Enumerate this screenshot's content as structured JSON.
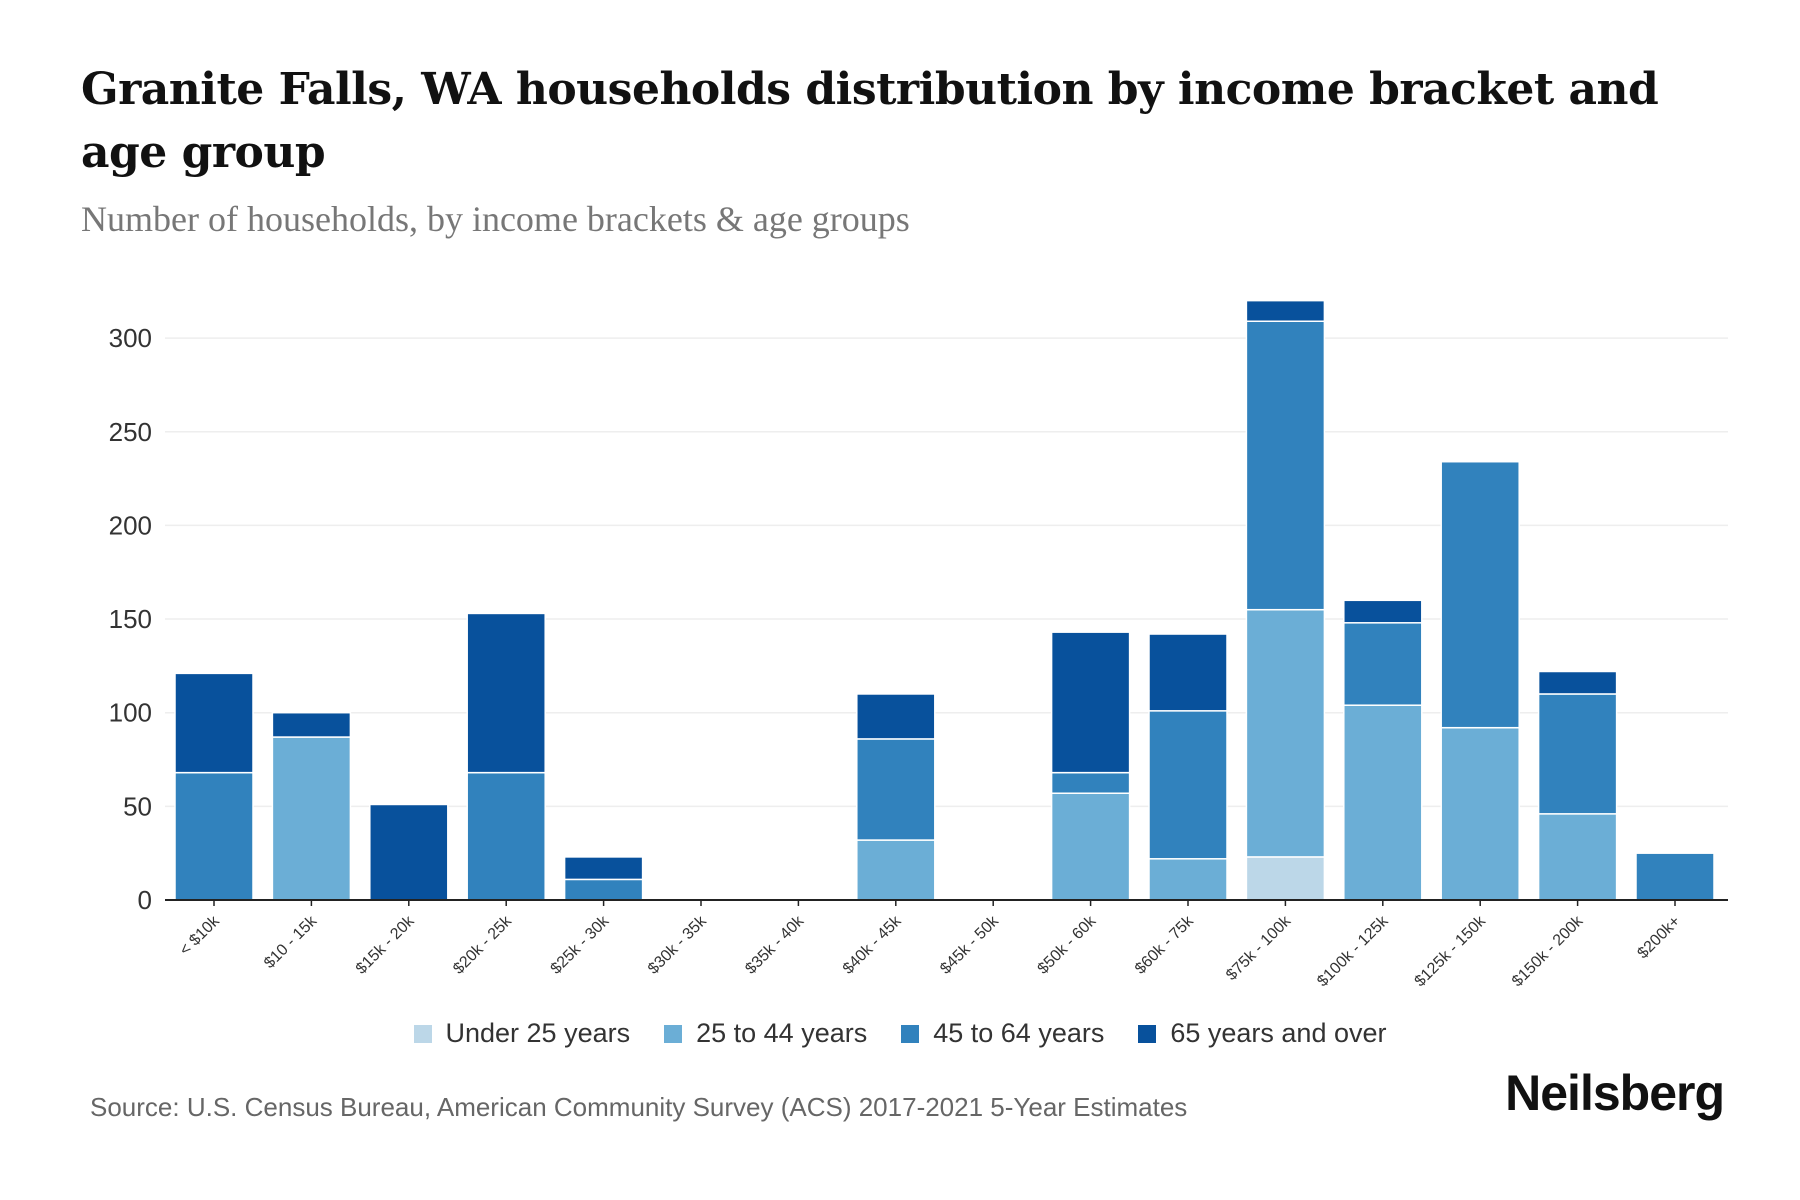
{
  "title": "Granite Falls, WA households distribution by income bracket and age group",
  "subtitle": "Number of households, by income brackets & age groups",
  "source": "Source: U.S. Census Bureau, American Community Survey (ACS) 2017-2021 5-Year Estimates",
  "logo": "Neilsberg",
  "colors": {
    "under25": "#bcd7e8",
    "a25_44": "#6baed6",
    "a45_64": "#3182bd",
    "a65plus": "#08519c",
    "grid": "#eeeeee",
    "axis": "#222222"
  },
  "chart_data": {
    "type": "bar",
    "stacked": true,
    "title": "Granite Falls, WA households distribution by income bracket and age group",
    "subtitle": "Number of households, by income brackets & age groups",
    "xlabel": "",
    "ylabel": "",
    "ylim": [
      0,
      320
    ],
    "yticks": [
      0,
      50,
      100,
      150,
      200,
      250,
      300
    ],
    "grid": true,
    "legend_position": "bottom",
    "categories": [
      "< $10k",
      "$10 - 15k",
      "$15k - 20k",
      "$20k - 25k",
      "$25k - 30k",
      "$30k - 35k",
      "$35k - 40k",
      "$40k - 45k",
      "$45k - 50k",
      "$50k - 60k",
      "$60k - 75k",
      "$75k - 100k",
      "$100k - 125k",
      "$125k - 150k",
      "$150k - 200k",
      "$200k+"
    ],
    "series": [
      {
        "name": "Under 25 years",
        "color": "#bcd7e8",
        "values": [
          0,
          0,
          0,
          0,
          0,
          0,
          0,
          0,
          0,
          0,
          0,
          23,
          0,
          0,
          0,
          0
        ]
      },
      {
        "name": "25 to 44 years",
        "color": "#6baed6",
        "values": [
          0,
          87,
          0,
          0,
          0,
          0,
          0,
          32,
          0,
          57,
          22,
          132,
          104,
          92,
          46,
          0
        ]
      },
      {
        "name": "45 to 64 years",
        "color": "#3182bd",
        "values": [
          68,
          0,
          0,
          68,
          11,
          0,
          0,
          54,
          0,
          11,
          79,
          154,
          44,
          142,
          64,
          25
        ]
      },
      {
        "name": "65 years and over",
        "color": "#08519c",
        "values": [
          53,
          13,
          51,
          85,
          12,
          0,
          0,
          24,
          0,
          75,
          41,
          11,
          12,
          0,
          12,
          0
        ]
      }
    ]
  }
}
